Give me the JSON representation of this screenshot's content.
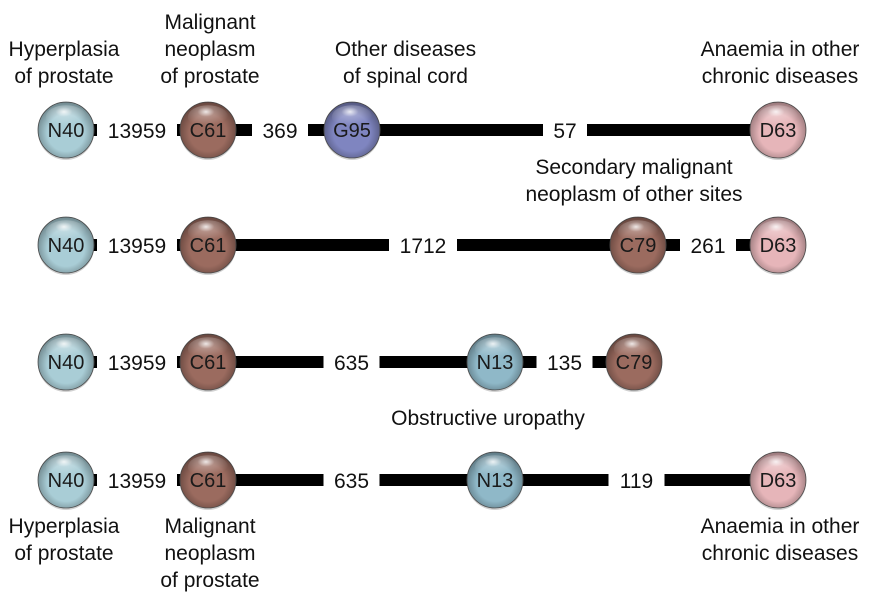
{
  "nodes": {
    "N40": {
      "code": "N40",
      "color": "#a9cdd6",
      "label": "Hyperplasia of prostate"
    },
    "C61": {
      "code": "C61",
      "color": "#9b6b5f",
      "label": "Malignant neoplasm of prostate"
    },
    "G95": {
      "code": "G95",
      "color": "#7f85c0",
      "label": "Other diseases of spinal cord"
    },
    "D63": {
      "code": "D63",
      "color": "#e6b5b9",
      "label": "Anaemia in other chronic diseases"
    },
    "C79": {
      "code": "C79",
      "color": "#9b6b5f",
      "label": "Secondary malignant neoplasm of other sites"
    },
    "N13": {
      "code": "N13",
      "color": "#8fb8c8",
      "label": "Obstructive uropathy"
    }
  },
  "labels": {
    "top_hyperplasia": [
      "Hyperplasia",
      "of prostate"
    ],
    "top_malignant": [
      "Malignant",
      "neoplasm",
      "of prostate"
    ],
    "top_spinal": [
      "Other diseases",
      "of spinal cord"
    ],
    "top_anaemia": [
      "Anaemia in other",
      "chronic diseases"
    ],
    "secondary": [
      "Secondary malignant",
      "neoplasm of other sites"
    ],
    "obstructive": [
      "Obstructive uropathy"
    ],
    "bottom_hyperplasia": [
      "Hyperplasia",
      "of prostate"
    ],
    "bottom_malignant": [
      "Malignant",
      "neoplasm",
      "of prostate"
    ],
    "bottom_anaemia": [
      "Anaemia in other",
      "chronic diseases"
    ]
  },
  "paths": [
    {
      "nodes": [
        "N40",
        "C61",
        "G95",
        "D63"
      ],
      "counts": [
        "13959",
        "369",
        "57"
      ]
    },
    {
      "nodes": [
        "N40",
        "C61",
        "C79",
        "D63"
      ],
      "counts": [
        "13959",
        "1712",
        "261"
      ]
    },
    {
      "nodes": [
        "N40",
        "C61",
        "N13",
        "C79"
      ],
      "counts": [
        "13959",
        "635",
        "135"
      ]
    },
    {
      "nodes": [
        "N40",
        "C61",
        "N13",
        "D63"
      ],
      "counts": [
        "13959",
        "635",
        "119"
      ]
    }
  ]
}
